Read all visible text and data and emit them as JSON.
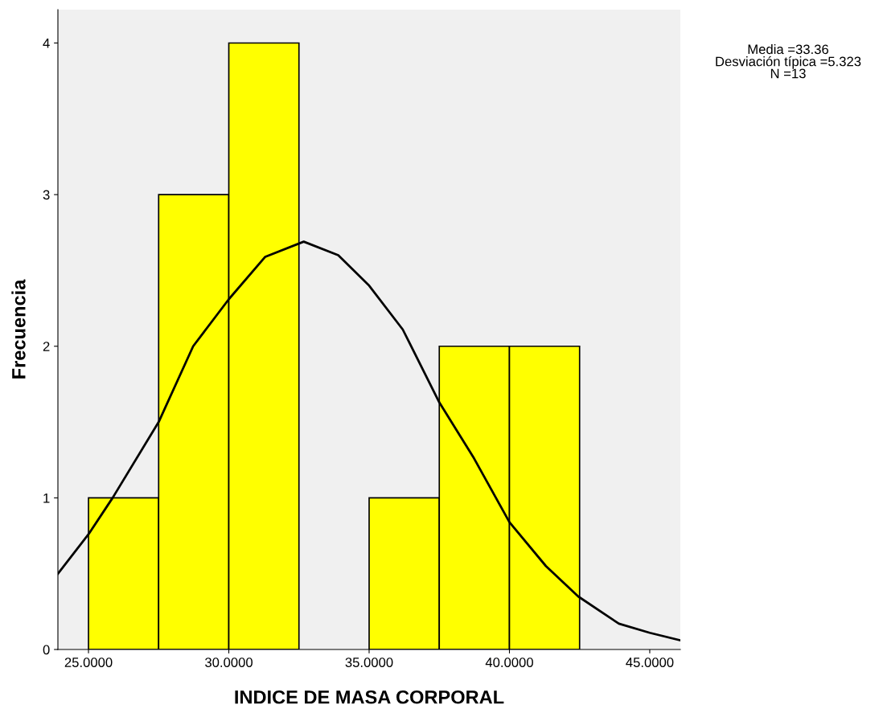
{
  "chart_data": {
    "type": "histogram",
    "xlabel": "INDICE DE MASA CORPORAL",
    "ylabel": "Frecuencia",
    "bins": [
      25,
      27.5,
      30,
      32.5,
      35,
      37.5,
      40,
      42.5
    ],
    "values": [
      1,
      3,
      4,
      0,
      1,
      2,
      2
    ],
    "color": "#ffff00",
    "series": [
      {
        "type": "line",
        "color": "#000000",
        "x": [
          23.91,
          25,
          25.86,
          27.5,
          28.73,
          30,
          31.3,
          32.67,
          33.9,
          35,
          36.2,
          37.5,
          38.74,
          40,
          41.3,
          42.45,
          43.9,
          45,
          46.09
        ],
        "values": [
          0.5,
          0.76,
          1.0,
          1.5,
          2.0,
          2.31,
          2.59,
          2.69,
          2.6,
          2.4,
          2.11,
          1.63,
          1.26,
          0.84,
          0.55,
          0.35,
          0.17,
          0.11,
          0.06
        ]
      }
    ],
    "xlim": [
      23.91,
      46.09
    ],
    "ylim": [
      0,
      4.22
    ],
    "xticks": [
      {
        "value": 25,
        "label": "25.0000"
      },
      {
        "value": 30,
        "label": "30.0000"
      },
      {
        "value": 35,
        "label": "35.0000"
      },
      {
        "value": 40,
        "label": "40.0000"
      },
      {
        "value": 45,
        "label": "45.0000"
      }
    ],
    "yticks": [
      0,
      1,
      2,
      3,
      4
    ],
    "grid": false,
    "legend": false,
    "annotations": [
      "Media =33.36\nDesviación típica =5.323\nN =13"
    ]
  }
}
